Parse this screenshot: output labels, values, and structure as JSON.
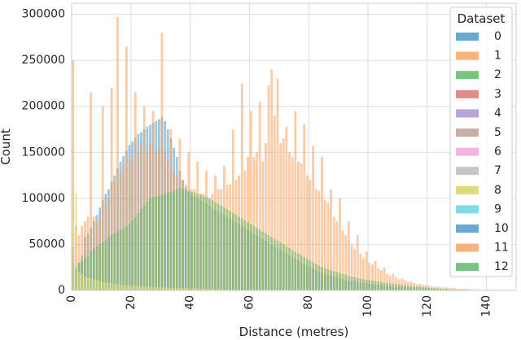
{
  "chart_data": {
    "type": "histogram",
    "xlabel": "Distance (metres)",
    "ylabel": "Count",
    "xlim": [
      0,
      150
    ],
    "ylim": [
      0,
      312000
    ],
    "x_ticks": [
      0,
      20,
      40,
      60,
      80,
      100,
      120,
      140
    ],
    "y_ticks": [
      0,
      50000,
      100000,
      150000,
      200000,
      250000,
      300000
    ],
    "x_tick_labels": [
      "0",
      "20",
      "40",
      "60",
      "80",
      "100",
      "120",
      "140"
    ],
    "y_tick_labels": [
      "0",
      "50000",
      "100000",
      "150000",
      "200000",
      "250000",
      "300000"
    ],
    "grid": true,
    "legend": {
      "title": "Dataset",
      "placement": "top-right"
    },
    "bin_width": 1,
    "series": [
      {
        "name": "0",
        "color": "#4c9ad0",
        "bins": [
          0,
          150
        ],
        "values": [
          47000,
          25000,
          30000,
          38000,
          58000,
          62000,
          68000,
          75000,
          82000,
          90000,
          98000,
          105000,
          110000,
          118000,
          125000,
          133000,
          140000,
          146000,
          152000,
          158000,
          162000,
          166000,
          170000,
          172000,
          175000,
          178000,
          180000,
          182000,
          184000,
          186000,
          188000,
          184000,
          175000,
          165000,
          155000,
          145000,
          130000,
          120000,
          112000,
          108000,
          104000,
          102000,
          100000,
          98000,
          96000,
          94000,
          92000,
          90000,
          88000,
          86000,
          84000,
          82000,
          80000,
          78000,
          76000,
          74000,
          72000,
          70000,
          68000,
          66000,
          64000,
          62000,
          60000,
          58000,
          56000,
          54000,
          52000,
          50000,
          48000,
          46000,
          44000,
          42000,
          40000,
          38000,
          36000,
          34000,
          32000,
          30000,
          28000,
          26000,
          24500,
          23000,
          21500,
          20000,
          19000,
          18000,
          17000,
          16000,
          15000,
          14000,
          13000,
          12000,
          11000,
          10500,
          10000,
          9500,
          9000,
          8500,
          8000,
          7500,
          7000,
          6600,
          6200,
          5800,
          5400,
          5000,
          4700,
          4400,
          4100,
          3800,
          3500,
          3300,
          3100,
          2900,
          2700,
          2500,
          2300,
          2100,
          1900,
          1700,
          1500,
          1300,
          1100,
          900,
          700,
          500,
          400,
          300,
          200,
          100,
          80,
          60,
          40,
          20,
          10,
          0,
          0,
          0,
          0,
          0,
          0,
          0,
          0,
          0,
          0,
          0,
          0,
          0,
          0,
          0
        ]
      },
      {
        "name": "1",
        "color": "#f5a25e",
        "values": [
          250000,
          70000,
          60000,
          70000,
          75000,
          80000,
          215000,
          80000,
          75000,
          80000,
          200000,
          95000,
          100000,
          220000,
          120000,
          297000,
          130000,
          135000,
          265000,
          145000,
          140000,
          215000,
          150000,
          160000,
          200000,
          150000,
          160000,
          195000,
          150000,
          155000,
          280000,
          150000,
          140000,
          175000,
          130000,
          125000,
          165000,
          120000,
          115000,
          150000,
          110000,
          110000,
          140000,
          105000,
          105000,
          130000,
          100000,
          105000,
          125000,
          110000,
          110000,
          135000,
          115000,
          115000,
          175000,
          120000,
          125000,
          225000,
          130000,
          145000,
          195000,
          145000,
          150000,
          205000,
          140000,
          160000,
          223000,
          240000,
          190000,
          230000,
          160000,
          165000,
          178000,
          150000,
          145000,
          195000,
          140000,
          138000,
          180000,
          125000,
          120000,
          157000,
          110000,
          108000,
          145000,
          98000,
          95000,
          110000,
          80000,
          75000,
          100000,
          65000,
          60000,
          75000,
          50000,
          45000,
          60000,
          40000,
          35000,
          42000,
          30000,
          28000,
          32000,
          24000,
          22000,
          25000,
          18000,
          16000,
          18000,
          14000,
          12000,
          12500,
          11000,
          9000,
          9500,
          8000,
          7000,
          7000,
          6000,
          5500,
          5000,
          4600,
          4200,
          4000,
          3600,
          3200,
          3000,
          2700,
          2400,
          2200,
          2000,
          1800,
          1600,
          1400,
          1200,
          1000,
          900,
          800,
          700,
          600,
          500,
          400,
          350,
          300,
          250,
          200,
          150,
          100,
          60,
          30
        ]
      },
      {
        "name": "2",
        "color": "#65b86a",
        "values": [
          30000,
          25000,
          30000,
          32000,
          35000,
          38000,
          42000,
          45000,
          48000,
          50000,
          52000,
          55000,
          58000,
          60000,
          62000,
          64000,
          66000,
          68000,
          70000,
          72000,
          76000,
          80000,
          84000,
          88000,
          92000,
          96000,
          100000,
          101000,
          102000,
          103000,
          104000,
          105000,
          106000,
          107000,
          108000,
          110000,
          111000,
          110000,
          109000,
          108000,
          107000,
          106000,
          105000,
          104000,
          103000,
          102000,
          100000,
          98000,
          96000,
          94000,
          92000,
          90000,
          88000,
          86000,
          84000,
          82000,
          80000,
          78000,
          76000,
          74000,
          72000,
          70000,
          68000,
          66000,
          64000,
          62000,
          60000,
          58000,
          56000,
          54000,
          52000,
          50000,
          48000,
          46000,
          44000,
          42000,
          40000,
          38000,
          36000,
          34000,
          32000,
          30000,
          28500,
          27000,
          25500,
          24000,
          23000,
          22000,
          21000,
          20000,
          19000,
          18000,
          17000,
          16000,
          15000,
          14200,
          13500,
          12800,
          12100,
          11500,
          11000,
          10500,
          10000,
          9500,
          9000,
          8500,
          8000,
          7600,
          7200,
          6800,
          6400,
          6000,
          5600,
          5200,
          4800,
          4500,
          4200,
          3900,
          3600,
          3300,
          3000,
          2700,
          2400,
          2100,
          1800,
          1600,
          1400,
          1200,
          1000,
          900,
          800,
          700,
          600,
          500,
          400,
          300,
          250,
          200,
          150,
          100,
          80,
          60,
          40,
          20,
          10,
          5,
          0,
          0,
          0,
          0
        ]
      },
      {
        "name": "8",
        "color": "#dddb7a",
        "values": [
          108000,
          105000,
          20000,
          18000,
          15000,
          14000,
          13000,
          12000,
          11000,
          10000,
          9000,
          8500,
          8000,
          7500,
          7000,
          6500,
          6000,
          5800,
          5600,
          5400,
          5200,
          5000,
          4800,
          4600,
          4400,
          4200,
          4000,
          3800,
          3600,
          3400,
          3200,
          3000,
          2900,
          2800,
          2700,
          2600,
          2500,
          2400,
          2300,
          2200,
          2100,
          2000,
          1900,
          1800,
          1700,
          1600,
          1500,
          1400,
          1300,
          1200,
          1100,
          1000,
          900,
          800,
          700,
          600,
          500,
          400,
          300,
          200,
          150,
          100,
          80,
          60,
          40,
          20,
          10,
          5,
          0,
          0,
          0,
          0,
          0,
          0,
          0,
          0,
          0,
          0,
          0,
          0,
          0,
          0,
          0,
          0,
          0,
          0,
          0,
          0,
          0,
          0,
          0,
          0,
          0,
          0,
          0,
          0,
          0,
          0,
          0,
          0,
          0,
          0,
          0,
          0,
          0,
          0,
          0,
          0,
          0,
          0,
          0,
          0,
          0,
          0,
          0,
          0,
          0,
          0,
          0,
          0,
          0,
          0,
          0,
          0,
          0,
          0,
          0,
          0,
          0,
          0,
          0,
          0,
          0,
          0,
          0,
          0,
          0,
          0,
          0,
          0,
          0,
          0,
          0,
          0,
          0,
          0
        ]
      }
    ],
    "legend_entries": [
      {
        "label": "0",
        "color": "#6aa9d6"
      },
      {
        "label": "1",
        "color": "#f6b47c"
      },
      {
        "label": "2",
        "color": "#7cc381"
      },
      {
        "label": "3",
        "color": "#e18c86"
      },
      {
        "label": "4",
        "color": "#b9a6d9"
      },
      {
        "label": "5",
        "color": "#c9ada6"
      },
      {
        "label": "6",
        "color": "#f3b5de"
      },
      {
        "label": "7",
        "color": "#c6c6c6"
      },
      {
        "label": "8",
        "color": "#dddb7a"
      },
      {
        "label": "9",
        "color": "#7fdbe6"
      },
      {
        "label": "10",
        "color": "#6aa9d6"
      },
      {
        "label": "11",
        "color": "#f6b47c"
      },
      {
        "label": "12",
        "color": "#7cc381"
      }
    ]
  }
}
